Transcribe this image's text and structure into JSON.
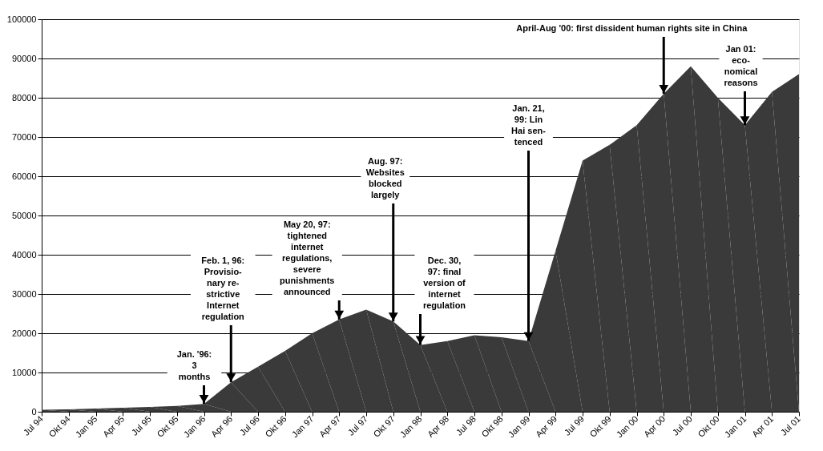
{
  "chart_data": {
    "type": "area",
    "categories": [
      "Jul 94",
      "Okt 94",
      "Jan 95",
      "Apr 95",
      "Jul 95",
      "Okt 95",
      "Jan 96",
      "Apr 96",
      "Jul 96",
      "Okt 96",
      "Jan 97",
      "Apr 97",
      "Jul 97",
      "Okt 97",
      "Jan 98",
      "Apr 98",
      "Jul 98",
      "Okt 98",
      "Jan 99",
      "Apr 99",
      "Jul 99",
      "Okt 99",
      "Jan 00",
      "Apr 00",
      "Jul 00",
      "Okt 00",
      "Jan 01",
      "Apr 01",
      "Jul 01"
    ],
    "series": [
      {
        "color": "#3a3a3a",
        "values": [
          500,
          600,
          800,
          1000,
          1200,
          1500,
          2000,
          7500,
          11500,
          15500,
          20000,
          23500,
          26000,
          23000,
          17000,
          18000,
          19500,
          19000,
          18000,
          41000,
          64000,
          68000,
          73000,
          81000,
          88000,
          80000,
          73000,
          81500,
          86000
        ]
      }
    ],
    "ylim": [
      0,
      100000
    ],
    "yticks": [
      0,
      10000,
      20000,
      30000,
      40000,
      50000,
      60000,
      70000,
      80000,
      90000,
      100000
    ],
    "grid": "y",
    "annotations": [
      {
        "text": "Jan. '96:\n3\nmonths",
        "x": "Jan 96",
        "y": 2000
      },
      {
        "text": "Feb. 1, 96:\nProvisio-\nnary re-\nstrictive\nInternet\nregulation",
        "x": "Apr 96",
        "y": 7500
      },
      {
        "text": "May 20, 97:\ntightened\ninternet\nregulations,\nsevere\npunishments\nannounced",
        "x": "Apr 97",
        "y": 23500
      },
      {
        "text": "Aug. 97:\nWebsites\nblocked\nlargely",
        "x": "Okt 97",
        "y": 23000
      },
      {
        "text": "Dec. 30,\n97: final\nversion of\ninternet\nregulation",
        "x": "Jan 98",
        "y": 17000
      },
      {
        "text": "Jan. 21,\n99: Lin\nHai sen-\ntenced",
        "x": "Jan 99",
        "y": 18000
      },
      {
        "text": "April-Aug '00: first dissident human rights site in China",
        "x": "Apr 00",
        "y": 81000
      },
      {
        "text": "Jan 01:\neco-\nnomical\nreasons",
        "x": "Jan 01",
        "y": 73000
      }
    ]
  }
}
